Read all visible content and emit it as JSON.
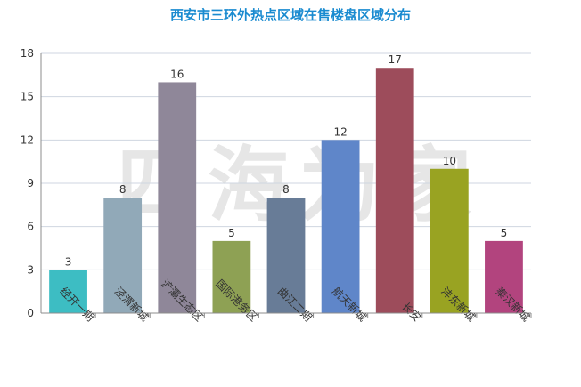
{
  "chart_data": {
    "type": "bar",
    "title": "西安市三环外热点区域在售楼盘区域分布",
    "categories": [
      "经开一期",
      "泾渭新城",
      "浐灞生态区",
      "国际港务区",
      "曲江二期",
      "航天新城",
      "长安",
      "沣东新城",
      "秦汉新城"
    ],
    "values": [
      3,
      8,
      16,
      5,
      8,
      12,
      17,
      10,
      5
    ],
    "colors": [
      "#3dbdc3",
      "#91a9b8",
      "#8f8799",
      "#8ea154",
      "#687c97",
      "#5f86c9",
      "#9d4c5b",
      "#99a322",
      "#b2447e"
    ],
    "ylim": [
      0,
      18
    ],
    "yticks": [
      0,
      3,
      6,
      9,
      12,
      15,
      18
    ],
    "xlabel": "",
    "ylabel": "",
    "grid": true,
    "legend": "none",
    "watermark": "四海为家"
  }
}
